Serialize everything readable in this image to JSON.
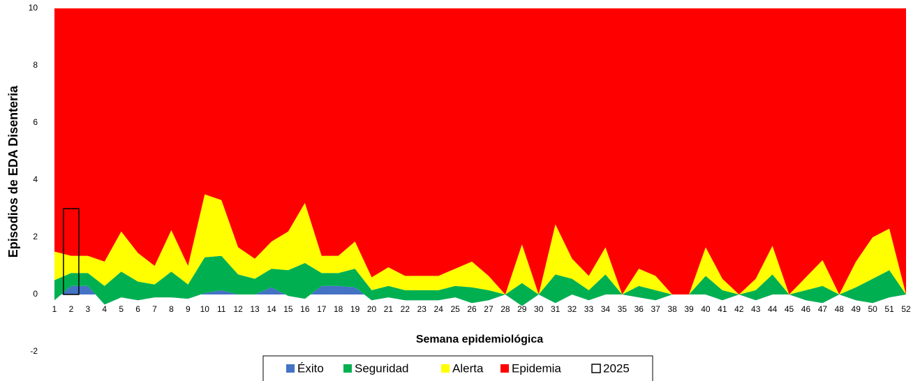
{
  "chart_data": {
    "type": "area",
    "y_label": "Episodios de EDA Disenteria",
    "x_label": "Semana epidemiológica",
    "categories": [
      "1",
      "2",
      "3",
      "4",
      "5",
      "6",
      "7",
      "8",
      "9",
      "10",
      "11",
      "12",
      "13",
      "14",
      "15",
      "16",
      "17",
      "18",
      "19",
      "20",
      "21",
      "22",
      "23",
      "24",
      "25",
      "26",
      "27",
      "28",
      "29",
      "30",
      "31",
      "32",
      "33",
      "34",
      "35",
      "36",
      "37",
      "38",
      "39",
      "40",
      "41",
      "42",
      "43",
      "44",
      "45",
      "46",
      "47",
      "48",
      "49",
      "50",
      "51",
      "52"
    ],
    "ylim": [
      -2,
      10
    ],
    "yticks": [
      -2,
      0,
      2,
      4,
      6,
      8,
      10
    ],
    "grid": false,
    "legend": "bottom",
    "series": [
      {
        "name": "Éxito",
        "color": "#4472c4",
        "values": [
          -0.2,
          0.3,
          0.3,
          -0.35,
          -0.1,
          -0.2,
          -0.1,
          -0.1,
          -0.15,
          0.05,
          0.15,
          0,
          0,
          0.25,
          -0.05,
          -0.15,
          0.3,
          0.3,
          0.25,
          -0.2,
          -0.1,
          -0.2,
          -0.2,
          -0.2,
          -0.1,
          -0.3,
          -0.2,
          0,
          -0.4,
          0,
          -0.3,
          0,
          -0.2,
          0,
          0,
          -0.1,
          -0.2,
          0,
          0,
          0,
          -0.2,
          0,
          -0.2,
          0,
          0,
          -0.2,
          -0.3,
          0,
          -0.2,
          -0.3,
          -0.1,
          0
        ]
      },
      {
        "name": "Seguridad",
        "color": "#00b050",
        "values": [
          0.7,
          0.45,
          0.45,
          0.65,
          0.9,
          0.65,
          0.45,
          0.9,
          0.5,
          1.25,
          1.2,
          0.7,
          0.55,
          0.65,
          0.9,
          1.25,
          0.45,
          0.45,
          0.65,
          0.35,
          0.4,
          0.35,
          0.35,
          0.35,
          0.4,
          0.55,
          0.35,
          0,
          0.8,
          0,
          1.0,
          0.55,
          0.35,
          0.7,
          0,
          0.4,
          0.35,
          0,
          0,
          0.65,
          0.35,
          0,
          0.35,
          0.7,
          0,
          0.35,
          0.6,
          0,
          0.45,
          0.85,
          0.95,
          0
        ]
      },
      {
        "name": "Alerta",
        "color": "#ffff00",
        "values": [
          1.0,
          0.6,
          0.6,
          0.85,
          1.4,
          1.0,
          0.65,
          1.45,
          0.65,
          2.2,
          1.95,
          0.95,
          0.7,
          0.95,
          1.35,
          2.1,
          0.6,
          0.6,
          0.95,
          0.45,
          0.65,
          0.5,
          0.5,
          0.5,
          0.6,
          0.9,
          0.5,
          0,
          1.35,
          0,
          1.75,
          0.7,
          0.5,
          0.95,
          0,
          0.6,
          0.5,
          0,
          0,
          1.0,
          0.4,
          0,
          0.4,
          1.0,
          0,
          0.45,
          0.9,
          0,
          0.9,
          1.45,
          1.45,
          0
        ]
      },
      {
        "name": "Epidemia",
        "color": "#ff0000",
        "values": [
          8.5,
          8.65,
          8.65,
          8.85,
          7.8,
          8.55,
          9.0,
          7.75,
          9.0,
          6.5,
          6.7,
          8.35,
          8.75,
          8.15,
          7.8,
          6.8,
          8.65,
          8.65,
          8.15,
          9.4,
          9.05,
          9.35,
          9.35,
          9.35,
          9.1,
          8.85,
          9.35,
          10,
          8.25,
          10,
          7.55,
          8.75,
          9.35,
          8.35,
          10,
          9.1,
          9.35,
          10,
          10,
          8.35,
          9.45,
          10,
          9.45,
          8.3,
          10,
          9.4,
          8.8,
          10,
          8.85,
          8.0,
          7.7,
          10
        ]
      },
      {
        "name": "2025",
        "color": "#000000",
        "kind": "bar",
        "values": [
          null,
          3,
          null,
          null,
          null,
          null,
          null,
          null,
          null,
          null,
          null,
          null,
          null,
          null,
          null,
          null,
          null,
          null,
          null,
          null,
          null,
          null,
          null,
          null,
          null,
          null,
          null,
          null,
          null,
          null,
          null,
          null,
          null,
          null,
          null,
          null,
          null,
          null,
          null,
          null,
          null,
          null,
          null,
          null,
          null,
          null,
          null,
          null,
          null,
          null,
          null,
          null
        ]
      }
    ]
  }
}
